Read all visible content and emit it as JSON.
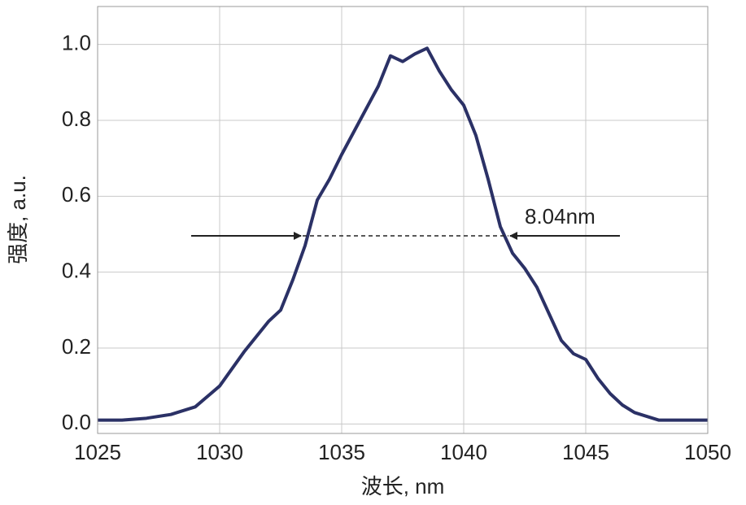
{
  "chart_data": {
    "type": "line",
    "xlabel": "波长, nm",
    "ylabel": "强度, a.u.",
    "annotation": "8.04nm",
    "xlim": [
      1025,
      1050
    ],
    "xticks": [
      1025,
      1030,
      1035,
      1040,
      1045,
      1050
    ],
    "ylim": [
      -0.025,
      1.1
    ],
    "yticks": [
      {
        "value": 0,
        "label": "0.0"
      },
      0.2,
      0.4,
      0.6,
      0.8,
      {
        "value": 1,
        "label": "1.0"
      }
    ],
    "grid": true,
    "series": [
      {
        "color": "#2b3166",
        "x": [
          1025,
          1026,
          1027,
          1028,
          1029,
          1030,
          1031,
          1032,
          1032.5,
          1033,
          1033.5,
          1034,
          1034.5,
          1035,
          1035.5,
          1036,
          1036.5,
          1037,
          1037.5,
          1038,
          1038.5,
          1039,
          1039.5,
          1040,
          1040.5,
          1041,
          1041.5,
          1042,
          1042.5,
          1043,
          1043.5,
          1044,
          1044.5,
          1045,
          1045.5,
          1046,
          1046.5,
          1047,
          1048,
          1049,
          1050
        ],
        "values": [
          0.01,
          0.01,
          0.015,
          0.025,
          0.045,
          0.1,
          0.19,
          0.27,
          0.3,
          0.38,
          0.47,
          0.59,
          0.645,
          0.71,
          0.77,
          0.83,
          0.89,
          0.97,
          0.955,
          0.975,
          0.99,
          0.93,
          0.88,
          0.84,
          0.76,
          0.645,
          0.52,
          0.45,
          0.41,
          0.36,
          0.29,
          0.22,
          0.185,
          0.17,
          0.12,
          0.08,
          0.05,
          0.03,
          0.01,
          0.01,
          0.01
        ]
      }
    ]
  }
}
